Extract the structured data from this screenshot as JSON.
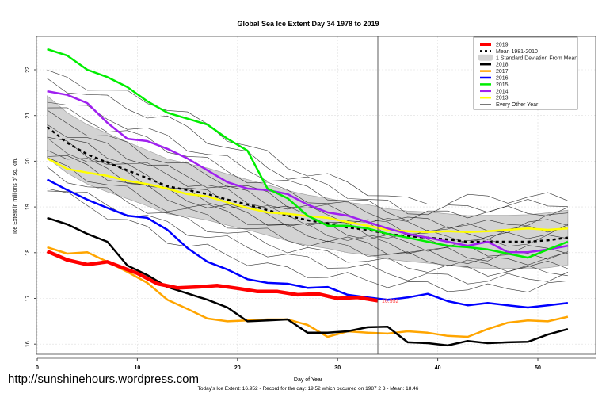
{
  "chart_data": {
    "type": "line",
    "title": "Global Sea Ice Extent Day 34 1978 to 2019",
    "xlabel": "Day of Year",
    "ylabel": "Ice Extent in millions of sq. km.",
    "xlim": [
      0,
      54
    ],
    "ylim": [
      15.8,
      22.7
    ],
    "xticks": [
      0,
      10,
      20,
      30,
      40,
      50
    ],
    "yticks": [
      16,
      17,
      18,
      19,
      20,
      21,
      22
    ],
    "grid": true,
    "marker_day": 34,
    "current_label": "16.952",
    "legend_position": "top-right",
    "legend": [
      "2019",
      "Mean 1981-2010",
      "1 Standard Deviation From Mean",
      "2018",
      "2017",
      "2016",
      "2015",
      "2014",
      "2013",
      "Every Other Year"
    ],
    "days": [
      1,
      3,
      5,
      7,
      9,
      11,
      13,
      15,
      17,
      19,
      21,
      23,
      25,
      27,
      29,
      31,
      33,
      35,
      37,
      39,
      41,
      43,
      45,
      47,
      49,
      51,
      53
    ],
    "mean": [
      20.75,
      20.4,
      20.15,
      19.97,
      19.8,
      19.63,
      19.45,
      19.37,
      19.28,
      19.16,
      19.05,
      18.93,
      18.81,
      18.71,
      18.64,
      18.55,
      18.5,
      18.41,
      18.36,
      18.33,
      18.29,
      18.24,
      18.24,
      18.24,
      18.24,
      18.27,
      18.33
    ],
    "std_dev": [
      0.68,
      0.66,
      0.65,
      0.64,
      0.62,
      0.61,
      0.6,
      0.58,
      0.57,
      0.56,
      0.55,
      0.55,
      0.55,
      0.55,
      0.55,
      0.55,
      0.55,
      0.55,
      0.55,
      0.56,
      0.56,
      0.57,
      0.58,
      0.58,
      0.59,
      0.6,
      0.6
    ],
    "series": [
      {
        "name": "2019",
        "color": "#ff0000",
        "width": 4.5,
        "days": [
          1,
          3,
          5,
          7,
          9,
          10,
          12,
          14,
          16,
          18,
          20,
          22,
          24,
          26,
          28,
          30,
          32,
          34
        ],
        "values": [
          18.03,
          17.84,
          17.74,
          17.8,
          17.63,
          17.55,
          17.32,
          17.23,
          17.25,
          17.28,
          17.22,
          17.15,
          17.15,
          17.08,
          17.1,
          17.0,
          17.02,
          16.95
        ]
      },
      {
        "name": "2018",
        "color": "#000000",
        "width": 2.5,
        "values": [
          18.76,
          18.62,
          18.41,
          18.24,
          17.72,
          17.51,
          17.25,
          17.11,
          16.97,
          16.8,
          16.5,
          16.52,
          16.54,
          16.25,
          16.25,
          16.28,
          16.37,
          16.38,
          16.04,
          16.02,
          15.97,
          16.07,
          16.02,
          16.04,
          16.05,
          16.21,
          16.33
        ]
      },
      {
        "name": "2017",
        "color": "#ffa500",
        "width": 2.5,
        "values": [
          18.12,
          17.98,
          18.01,
          17.8,
          17.58,
          17.34,
          16.97,
          16.77,
          16.56,
          16.5,
          16.52,
          16.54,
          16.54,
          16.42,
          16.16,
          16.28,
          16.25,
          16.23,
          16.28,
          16.25,
          16.18,
          16.16,
          16.33,
          16.47,
          16.52,
          16.5,
          16.6
        ]
      },
      {
        "name": "2016",
        "color": "#0000ff",
        "width": 2.5,
        "values": [
          19.6,
          19.37,
          19.16,
          18.98,
          18.81,
          18.76,
          18.5,
          18.1,
          17.8,
          17.63,
          17.42,
          17.34,
          17.32,
          17.23,
          17.25,
          17.08,
          17.02,
          16.97,
          17.02,
          17.1,
          16.94,
          16.85,
          16.9,
          16.85,
          16.8,
          16.85,
          16.9
        ]
      },
      {
        "name": "2015",
        "color": "#00ee00",
        "width": 2.5,
        "values": [
          22.45,
          22.31,
          22.0,
          21.84,
          21.62,
          21.31,
          21.06,
          20.93,
          20.8,
          20.49,
          20.23,
          19.4,
          19.19,
          18.81,
          18.59,
          18.59,
          18.53,
          18.41,
          18.33,
          18.24,
          18.15,
          18.12,
          18.07,
          17.98,
          17.89,
          18.07,
          18.24
        ]
      },
      {
        "name": "2014",
        "color": "#a020f0",
        "width": 2.5,
        "values": [
          21.53,
          21.45,
          21.27,
          20.84,
          20.49,
          20.44,
          20.27,
          20.06,
          19.8,
          19.54,
          19.4,
          19.37,
          19.28,
          19.05,
          18.88,
          18.81,
          18.67,
          18.53,
          18.41,
          18.33,
          18.24,
          18.15,
          18.24,
          18.01,
          18.01,
          18.07,
          18.15
        ]
      },
      {
        "name": "2013",
        "color": "#ffff00",
        "width": 2.5,
        "values": [
          20.06,
          19.83,
          19.75,
          19.68,
          19.57,
          19.5,
          19.4,
          19.28,
          19.23,
          19.1,
          18.98,
          18.88,
          18.85,
          18.8,
          18.76,
          18.67,
          18.59,
          18.5,
          18.47,
          18.45,
          18.47,
          18.45,
          18.47,
          18.5,
          18.53,
          18.5,
          18.53
        ]
      }
    ],
    "every_other_year": {
      "days": [
        1,
        13,
        25,
        37,
        45,
        53
      ],
      "lines": [
        [
          21.9,
          21.2,
          19.9,
          19.1,
          19.2,
          19.2
        ],
        [
          21.75,
          20.9,
          19.7,
          18.9,
          19.0,
          19.1
        ],
        [
          21.4,
          20.5,
          19.5,
          18.8,
          18.9,
          18.9
        ],
        [
          21.2,
          20.3,
          19.3,
          18.7,
          18.6,
          18.8
        ],
        [
          21.0,
          20.0,
          19.1,
          18.6,
          18.5,
          18.7
        ],
        [
          20.8,
          19.8,
          19.0,
          18.5,
          18.4,
          18.6
        ],
        [
          20.6,
          19.7,
          18.9,
          18.4,
          18.3,
          18.5
        ],
        [
          20.5,
          19.5,
          18.8,
          18.3,
          18.2,
          18.3
        ],
        [
          20.4,
          19.4,
          18.7,
          18.2,
          18.0,
          18.1
        ],
        [
          20.3,
          19.3,
          18.6,
          18.1,
          17.9,
          18.0
        ],
        [
          20.2,
          19.2,
          18.5,
          18.0,
          17.8,
          17.9
        ],
        [
          20.0,
          19.0,
          18.3,
          17.9,
          17.7,
          17.7
        ],
        [
          19.8,
          18.8,
          18.1,
          17.7,
          17.6,
          17.6
        ],
        [
          19.5,
          18.6,
          17.9,
          17.5,
          17.4,
          17.5
        ],
        [
          19.4,
          18.3,
          17.6,
          17.3,
          17.2,
          17.3
        ]
      ]
    }
  },
  "footer": {
    "url": "http://sunshinehours.wordpress.com",
    "summary": "Today's Ice Extent: 16.952  - Record for the day: 19.52 which occurred on 1987 2 3  - Mean: 18.46"
  }
}
